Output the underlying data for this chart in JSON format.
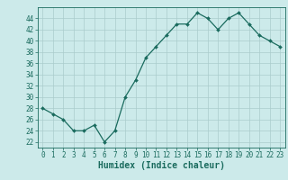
{
  "x": [
    0,
    1,
    2,
    3,
    4,
    5,
    6,
    7,
    8,
    9,
    10,
    11,
    12,
    13,
    14,
    15,
    16,
    17,
    18,
    19,
    20,
    21,
    22,
    23
  ],
  "y": [
    28,
    27,
    26,
    24,
    24,
    25,
    22,
    24,
    30,
    33,
    37,
    39,
    41,
    43,
    43,
    45,
    44,
    42,
    44,
    45,
    43,
    41,
    40,
    39
  ],
  "line_color": "#1a6b5e",
  "marker": "D",
  "marker_size": 2.0,
  "bg_color": "#cceaea",
  "grid_color": "#aacccc",
  "xlabel": "Humidex (Indice chaleur)",
  "xlim": [
    -0.5,
    23.5
  ],
  "ylim": [
    21,
    46
  ],
  "yticks": [
    22,
    24,
    26,
    28,
    30,
    32,
    34,
    36,
    38,
    40,
    42,
    44
  ],
  "xticks": [
    0,
    1,
    2,
    3,
    4,
    5,
    6,
    7,
    8,
    9,
    10,
    11,
    12,
    13,
    14,
    15,
    16,
    17,
    18,
    19,
    20,
    21,
    22,
    23
  ],
  "tick_fontsize": 5.5,
  "label_fontsize": 7.0
}
